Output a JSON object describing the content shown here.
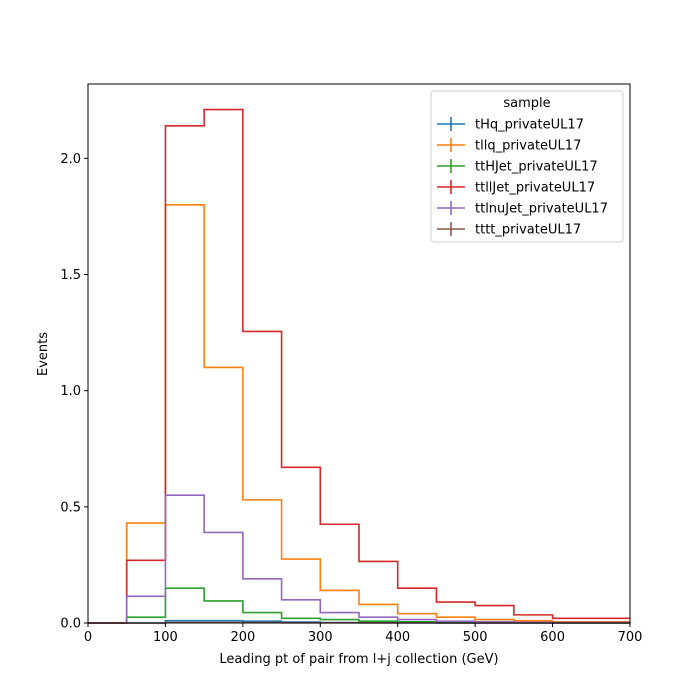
{
  "chart_data": {
    "type": "line",
    "step": true,
    "xlabel": "Leading pt of pair from l+j collection (GeV)",
    "ylabel": "Events",
    "xlim": [
      0,
      700
    ],
    "ylim": [
      0,
      2.32
    ],
    "x_ticks": [
      0,
      100,
      200,
      300,
      400,
      500,
      600,
      700
    ],
    "y_ticks": [
      0.0,
      0.5,
      1.0,
      1.5,
      2.0
    ],
    "x_tick_labels": [
      "0",
      "100",
      "200",
      "300",
      "400",
      "500",
      "600",
      "700"
    ],
    "y_tick_labels": [
      "0.0",
      "0.5",
      "1.0",
      "1.5",
      "2.0"
    ],
    "grid": false,
    "legend": {
      "title": "sample",
      "placement": "top-right"
    },
    "bin_edges": [
      0,
      50,
      100,
      150,
      200,
      250,
      300,
      350,
      400,
      450,
      500,
      550,
      600,
      700
    ],
    "series": [
      {
        "name": "tHq_privateUL17",
        "color": "#1f77b4",
        "values": [
          0,
          0,
          0.01,
          0.01,
          0.008,
          0.004,
          0.002,
          0.001,
          0.001,
          0,
          0,
          0,
          0
        ]
      },
      {
        "name": "tllq_privateUL17",
        "color": "#ff7f0e",
        "values": [
          0,
          0.43,
          1.8,
          1.1,
          0.53,
          0.275,
          0.14,
          0.08,
          0.04,
          0.025,
          0.015,
          0.01,
          0.005
        ]
      },
      {
        "name": "ttHJet_privateUL17",
        "color": "#2ca02c",
        "values": [
          0,
          0.025,
          0.15,
          0.095,
          0.045,
          0.02,
          0.015,
          0.008,
          0.005,
          0.003,
          0.002,
          0.001,
          0.001
        ]
      },
      {
        "name": "ttllJet_privateUL17",
        "color": "#d62728",
        "values": [
          0,
          0.27,
          2.14,
          2.21,
          1.255,
          0.67,
          0.425,
          0.265,
          0.15,
          0.09,
          0.075,
          0.035,
          0.02
        ]
      },
      {
        "name": "ttlnuJet_privateUL17",
        "color": "#9467bd",
        "values": [
          0,
          0.115,
          0.55,
          0.39,
          0.19,
          0.1,
          0.045,
          0.025,
          0.015,
          0.008,
          0.005,
          0.003,
          0.002
        ]
      },
      {
        "name": "tttt_privateUL17",
        "color": "#8c564b",
        "values": [
          0,
          0,
          0.002,
          0.002,
          0.002,
          0.001,
          0.001,
          0.001,
          0.001,
          0,
          0,
          0,
          0
        ]
      }
    ]
  }
}
